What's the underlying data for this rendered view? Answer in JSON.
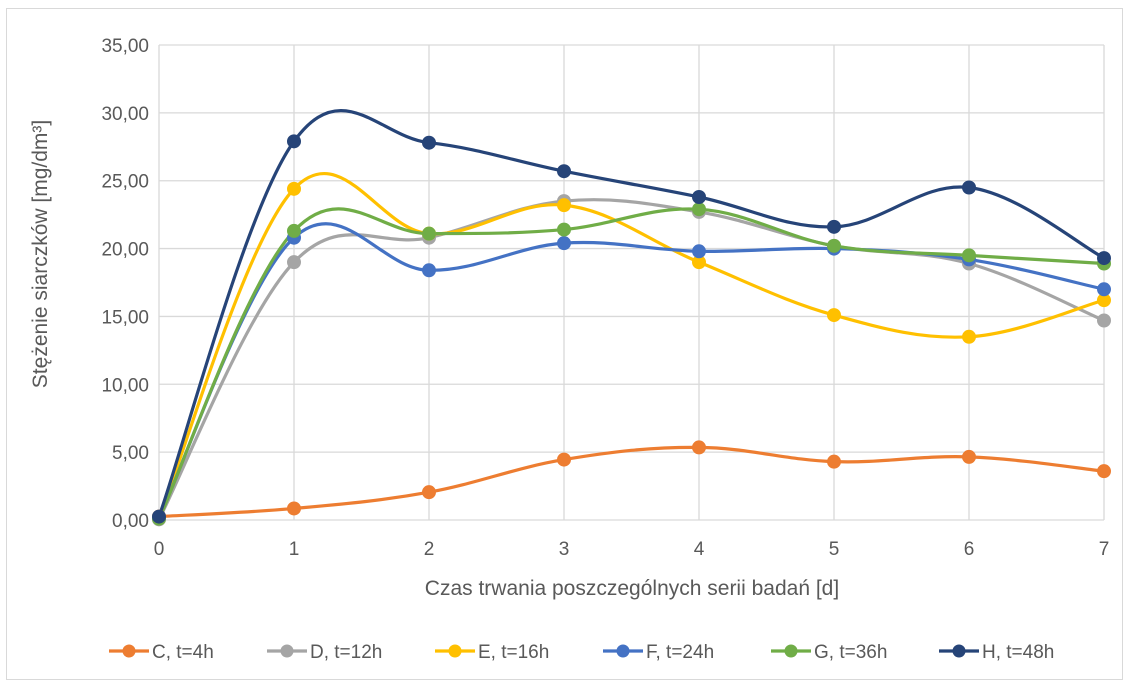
{
  "chart_data": {
    "type": "line",
    "xlabel": "Czas trwania poszczególnych serii badań [d]",
    "ylabel": "Stężenie siarczków [mg/dm³]",
    "x": [
      0,
      1,
      2,
      3,
      4,
      5,
      6,
      7
    ],
    "x_tick_labels": [
      "0",
      "1",
      "2",
      "3",
      "4",
      "5",
      "6",
      "7"
    ],
    "ylim": [
      0,
      35
    ],
    "y_tick_labels": [
      "0,00",
      "5,00",
      "10,00",
      "15,00",
      "20,00",
      "25,00",
      "30,00",
      "35,00"
    ],
    "grid": true,
    "legend_position": "bottom",
    "smooth_lines": true,
    "series": [
      {
        "name": "C, t=4h",
        "color": "#ED7D31",
        "values": [
          0.25,
          0.85,
          2.05,
          4.45,
          5.35,
          4.3,
          4.65,
          3.6
        ]
      },
      {
        "name": "D, t=12h",
        "color": "#A5A5A5",
        "values": [
          0.05,
          19.0,
          20.8,
          23.5,
          22.7,
          20.2,
          18.9,
          14.7
        ]
      },
      {
        "name": "E, t=16h",
        "color": "#FFC000",
        "values": [
          0.2,
          24.4,
          21.1,
          23.2,
          19.0,
          15.1,
          13.5,
          16.2
        ]
      },
      {
        "name": "F, t=24h",
        "color": "#4472C4",
        "values": [
          0.15,
          20.8,
          18.4,
          20.4,
          19.8,
          20.0,
          19.2,
          17.0
        ]
      },
      {
        "name": "G, t=36h",
        "color": "#70AD47",
        "values": [
          0.1,
          21.3,
          21.1,
          21.4,
          22.9,
          20.2,
          19.5,
          18.9
        ]
      },
      {
        "name": "H, t=48h",
        "color": "#264478",
        "values": [
          0.25,
          27.9,
          27.8,
          25.7,
          23.8,
          21.6,
          24.5,
          19.3
        ]
      }
    ]
  }
}
